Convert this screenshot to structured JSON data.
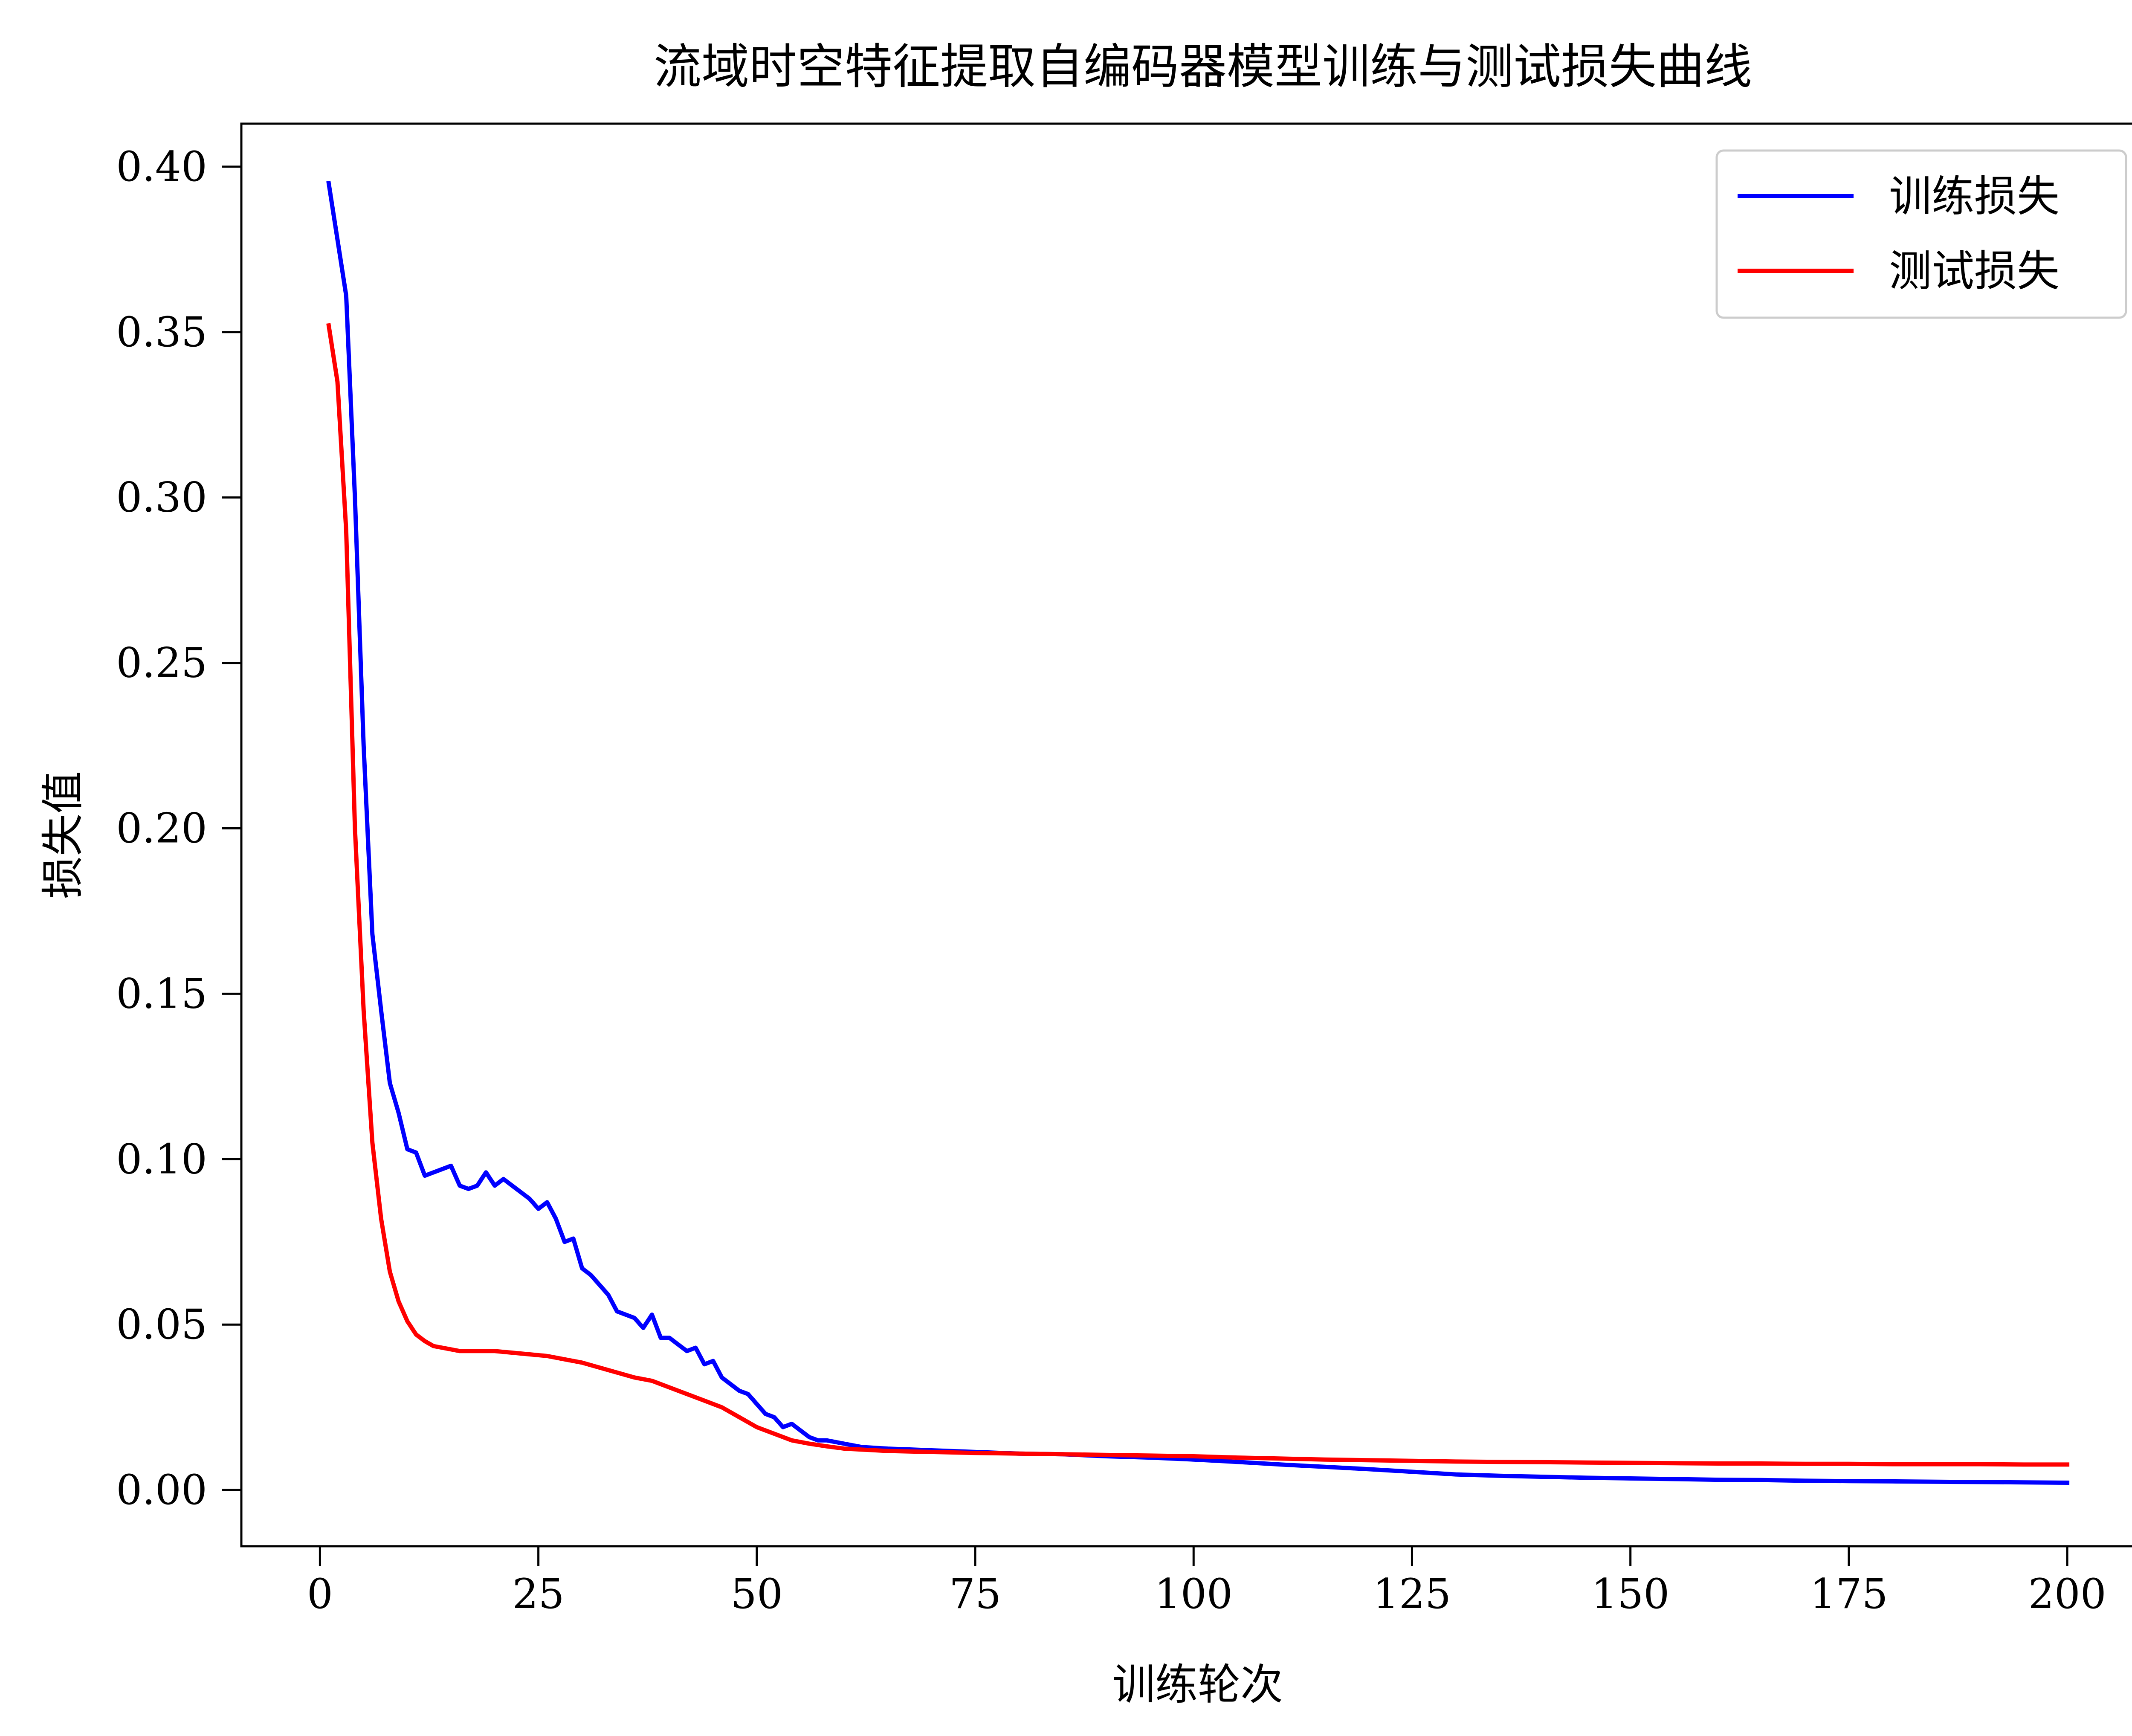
{
  "chart_data": {
    "type": "line",
    "title": "流域时空特征提取自编码器模型训练与测试损失曲线",
    "xlabel": "训练轮次",
    "ylabel": "损失值",
    "xlim": [
      -9,
      210
    ],
    "ylim": [
      -0.017,
      0.413
    ],
    "xticks": [
      "0",
      "25",
      "50",
      "75",
      "100",
      "125",
      "150",
      "175",
      "200"
    ],
    "yticks": [
      "0.00",
      "0.05",
      "0.10",
      "0.15",
      "0.20",
      "0.25",
      "0.30",
      "0.35",
      "0.40"
    ],
    "grid": false,
    "legend_position": "top-right",
    "series": [
      {
        "name": "训练损失",
        "color": "#0000ff",
        "points": [
          [
            1,
            0.395
          ],
          [
            2,
            0.378
          ],
          [
            3,
            0.361
          ],
          [
            4,
            0.3
          ],
          [
            5,
            0.225
          ],
          [
            6,
            0.168
          ],
          [
            7,
            0.145
          ],
          [
            8,
            0.123
          ],
          [
            9,
            0.114
          ],
          [
            10,
            0.103
          ],
          [
            11,
            0.102
          ],
          [
            12,
            0.095
          ],
          [
            13,
            0.096
          ],
          [
            14,
            0.097
          ],
          [
            15,
            0.098
          ],
          [
            16,
            0.092
          ],
          [
            17,
            0.091
          ],
          [
            18,
            0.092
          ],
          [
            19,
            0.096
          ],
          [
            20,
            0.092
          ],
          [
            21,
            0.094
          ],
          [
            22,
            0.092
          ],
          [
            23,
            0.09
          ],
          [
            24,
            0.088
          ],
          [
            25,
            0.085
          ],
          [
            26,
            0.087
          ],
          [
            27,
            0.082
          ],
          [
            28,
            0.075
          ],
          [
            29,
            0.076
          ],
          [
            30,
            0.067
          ],
          [
            31,
            0.065
          ],
          [
            32,
            0.062
          ],
          [
            33,
            0.059
          ],
          [
            34,
            0.054
          ],
          [
            35,
            0.053
          ],
          [
            36,
            0.052
          ],
          [
            37,
            0.049
          ],
          [
            38,
            0.053
          ],
          [
            39,
            0.046
          ],
          [
            40,
            0.046
          ],
          [
            41,
            0.044
          ],
          [
            42,
            0.042
          ],
          [
            43,
            0.043
          ],
          [
            44,
            0.038
          ],
          [
            45,
            0.039
          ],
          [
            46,
            0.034
          ],
          [
            47,
            0.032
          ],
          [
            48,
            0.03
          ],
          [
            49,
            0.029
          ],
          [
            50,
            0.026
          ],
          [
            51,
            0.023
          ],
          [
            52,
            0.022
          ],
          [
            53,
            0.019
          ],
          [
            54,
            0.02
          ],
          [
            55,
            0.018
          ],
          [
            56,
            0.016
          ],
          [
            57,
            0.015
          ],
          [
            58,
            0.015
          ],
          [
            60,
            0.014
          ],
          [
            62,
            0.013
          ],
          [
            65,
            0.0125
          ],
          [
            70,
            0.012
          ],
          [
            75,
            0.0115
          ],
          [
            80,
            0.011
          ],
          [
            85,
            0.0108
          ],
          [
            90,
            0.0102
          ],
          [
            95,
            0.0098
          ],
          [
            100,
            0.0092
          ],
          [
            105,
            0.0085
          ],
          [
            110,
            0.0077
          ],
          [
            115,
            0.007
          ],
          [
            120,
            0.0063
          ],
          [
            125,
            0.0055
          ],
          [
            130,
            0.0047
          ],
          [
            135,
            0.0043
          ],
          [
            140,
            0.004
          ],
          [
            145,
            0.0037
          ],
          [
            150,
            0.0035
          ],
          [
            155,
            0.0033
          ],
          [
            160,
            0.0031
          ],
          [
            165,
            0.003
          ],
          [
            170,
            0.0028
          ],
          [
            175,
            0.0027
          ],
          [
            180,
            0.0026
          ],
          [
            185,
            0.0025
          ],
          [
            190,
            0.0024
          ],
          [
            195,
            0.0023
          ],
          [
            200,
            0.0022
          ]
        ]
      },
      {
        "name": "测试损失",
        "color": "#ff0000",
        "points": [
          [
            1,
            0.352
          ],
          [
            2,
            0.335
          ],
          [
            3,
            0.29
          ],
          [
            4,
            0.2
          ],
          [
            5,
            0.145
          ],
          [
            6,
            0.105
          ],
          [
            7,
            0.082
          ],
          [
            8,
            0.066
          ],
          [
            9,
            0.057
          ],
          [
            10,
            0.051
          ],
          [
            11,
            0.047
          ],
          [
            12,
            0.045
          ],
          [
            13,
            0.0435
          ],
          [
            14,
            0.043
          ],
          [
            15,
            0.0425
          ],
          [
            16,
            0.042
          ],
          [
            18,
            0.042
          ],
          [
            20,
            0.042
          ],
          [
            22,
            0.0415
          ],
          [
            24,
            0.041
          ],
          [
            26,
            0.0405
          ],
          [
            28,
            0.0395
          ],
          [
            30,
            0.0385
          ],
          [
            32,
            0.037
          ],
          [
            34,
            0.0355
          ],
          [
            36,
            0.034
          ],
          [
            38,
            0.033
          ],
          [
            40,
            0.031
          ],
          [
            42,
            0.029
          ],
          [
            44,
            0.027
          ],
          [
            46,
            0.025
          ],
          [
            48,
            0.022
          ],
          [
            50,
            0.019
          ],
          [
            52,
            0.017
          ],
          [
            54,
            0.015
          ],
          [
            56,
            0.014
          ],
          [
            58,
            0.0132
          ],
          [
            60,
            0.0125
          ],
          [
            65,
            0.0118
          ],
          [
            70,
            0.0115
          ],
          [
            75,
            0.0112
          ],
          [
            80,
            0.011
          ],
          [
            85,
            0.0108
          ],
          [
            90,
            0.0106
          ],
          [
            95,
            0.0104
          ],
          [
            100,
            0.0102
          ],
          [
            105,
            0.0098
          ],
          [
            110,
            0.0095
          ],
          [
            115,
            0.0092
          ],
          [
            120,
            0.009
          ],
          [
            125,
            0.0088
          ],
          [
            130,
            0.0086
          ],
          [
            135,
            0.0085
          ],
          [
            140,
            0.0084
          ],
          [
            145,
            0.0083
          ],
          [
            150,
            0.0082
          ],
          [
            155,
            0.0081
          ],
          [
            160,
            0.008
          ],
          [
            165,
            0.008
          ],
          [
            170,
            0.0079
          ],
          [
            175,
            0.0079
          ],
          [
            180,
            0.0078
          ],
          [
            185,
            0.0078
          ],
          [
            190,
            0.0078
          ],
          [
            195,
            0.0077
          ],
          [
            200,
            0.0077
          ]
        ]
      }
    ]
  }
}
